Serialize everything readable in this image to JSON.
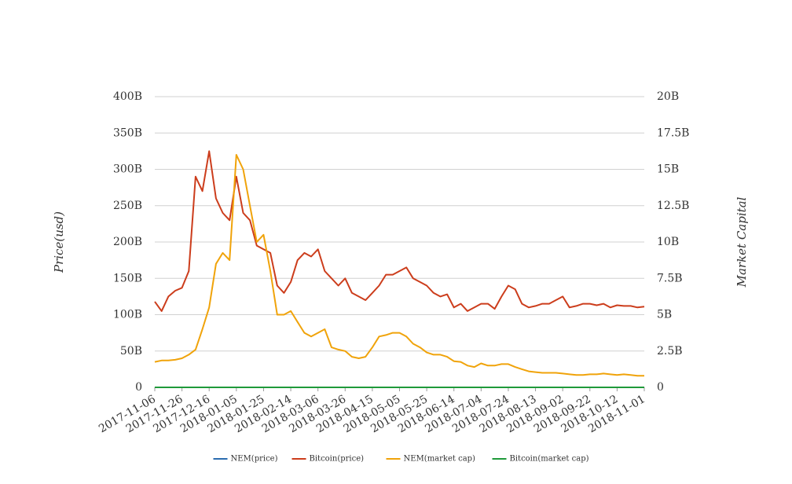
{
  "chart_data": {
    "type": "line",
    "y_label": "Price(usd)",
    "y2_label": "Market Capital",
    "x": [
      "2017-11-06",
      "2017-11-11",
      "2017-11-16",
      "2017-11-21",
      "2017-11-26",
      "2017-12-01",
      "2017-12-06",
      "2017-12-11",
      "2017-12-16",
      "2017-12-21",
      "2017-12-26",
      "2017-12-31",
      "2018-01-05",
      "2018-01-10",
      "2018-01-15",
      "2018-01-20",
      "2018-01-25",
      "2018-01-30",
      "2018-02-04",
      "2018-02-09",
      "2018-02-14",
      "2018-02-19",
      "2018-02-24",
      "2018-03-01",
      "2018-03-06",
      "2018-03-11",
      "2018-03-16",
      "2018-03-21",
      "2018-03-26",
      "2018-03-31",
      "2018-04-05",
      "2018-04-10",
      "2018-04-15",
      "2018-04-20",
      "2018-04-25",
      "2018-04-30",
      "2018-05-05",
      "2018-05-10",
      "2018-05-15",
      "2018-05-20",
      "2018-05-25",
      "2018-05-30",
      "2018-06-04",
      "2018-06-09",
      "2018-06-14",
      "2018-06-19",
      "2018-06-24",
      "2018-06-29",
      "2018-07-04",
      "2018-07-09",
      "2018-07-14",
      "2018-07-19",
      "2018-07-24",
      "2018-07-29",
      "2018-08-03",
      "2018-08-08",
      "2018-08-13",
      "2018-08-18",
      "2018-08-23",
      "2018-08-28",
      "2018-09-02",
      "2018-09-07",
      "2018-09-12",
      "2018-09-17",
      "2018-09-22",
      "2018-09-27",
      "2018-10-02",
      "2018-10-07",
      "2018-10-12",
      "2018-10-17",
      "2018-10-22",
      "2018-10-27",
      "2018-11-01"
    ],
    "xlim": [
      "2017-11-06",
      "2018-11-01"
    ],
    "xticks": [
      "2017-11-06",
      "2017-11-26",
      "2017-12-16",
      "2018-01-05",
      "2018-01-25",
      "2018-02-14",
      "2018-03-06",
      "2018-03-26",
      "2018-04-15",
      "2018-05-05",
      "2018-05-25",
      "2018-06-14",
      "2018-07-04",
      "2018-07-24",
      "2018-08-13",
      "2018-09-02",
      "2018-09-22",
      "2018-10-12",
      "2018-11-01"
    ],
    "ylim": [
      0,
      400000000000
    ],
    "yticks": [
      0,
      {
        "value": 50000000000,
        "label": "50B"
      },
      {
        "value": 100000000000,
        "label": "100B"
      },
      {
        "value": 150000000000,
        "label": "150B"
      },
      {
        "value": 200000000000,
        "label": "200B"
      },
      {
        "value": 250000000000,
        "label": "250B"
      },
      {
        "value": 300000000000,
        "label": "300B"
      },
      {
        "value": 350000000000,
        "label": "350B"
      },
      {
        "value": 400000000000,
        "label": "400B"
      }
    ],
    "y2lim": [
      0,
      20000000000
    ],
    "y2ticks": [
      0,
      {
        "value": 2500000000,
        "label": "2.5B"
      },
      {
        "value": 5000000000,
        "label": "5B"
      },
      {
        "value": 7500000000,
        "label": "7.5B"
      },
      {
        "value": 10000000000,
        "label": "10B"
      },
      {
        "value": 12500000000,
        "label": "12.5B"
      },
      {
        "value": 15000000000,
        "label": "15B"
      },
      {
        "value": 17500000000,
        "label": "17.5B"
      },
      {
        "value": 20000000000,
        "label": "20B"
      }
    ],
    "grid": true,
    "legend": "bottom",
    "series": [
      {
        "name": "NEM(price)",
        "color": "#2b6cb0",
        "values": [
          0,
          0,
          0,
          0,
          0,
          0,
          0,
          0,
          0,
          0,
          0,
          0,
          0,
          0,
          0,
          0,
          0,
          0,
          0,
          0,
          0,
          0,
          0,
          0,
          0,
          0,
          0,
          0,
          0,
          0,
          0,
          0,
          0,
          0,
          0,
          0,
          0,
          0,
          0,
          0,
          0,
          0,
          0,
          0,
          0,
          0,
          0,
          0,
          0,
          0,
          0,
          0,
          0,
          0,
          0,
          0,
          0,
          0,
          0,
          0,
          0,
          0,
          0,
          0,
          0,
          0,
          0,
          0,
          0,
          0,
          0,
          0,
          0
        ]
      },
      {
        "name": "Bitcoin(price)",
        "color": "#cc3d1c",
        "values": [
          118000000000,
          105000000000,
          125000000000,
          133000000000,
          137000000000,
          160000000000,
          290000000000,
          270000000000,
          325000000000,
          260000000000,
          240000000000,
          230000000000,
          290000000000,
          240000000000,
          230000000000,
          195000000000,
          190000000000,
          185000000000,
          140000000000,
          130000000000,
          145000000000,
          175000000000,
          185000000000,
          180000000000,
          190000000000,
          160000000000,
          150000000000,
          140000000000,
          150000000000,
          130000000000,
          125000000000,
          120000000000,
          130000000000,
          140000000000,
          155000000000,
          155000000000,
          160000000000,
          165000000000,
          150000000000,
          145000000000,
          140000000000,
          130000000000,
          125000000000,
          128000000000,
          110000000000,
          115000000000,
          105000000000,
          110000000000,
          115000000000,
          115000000000,
          108000000000,
          125000000000,
          140000000000,
          135000000000,
          115000000000,
          110000000000,
          112000000000,
          115000000000,
          115000000000,
          120000000000,
          125000000000,
          110000000000,
          112000000000,
          115000000000,
          115000000000,
          113000000000,
          115000000000,
          110000000000,
          113000000000,
          112000000000,
          112000000000,
          110000000000,
          111000000000
        ]
      },
      {
        "name": "NEM(market cap)",
        "color": "#f0a30a",
        "axis": "y2",
        "values": [
          1750000000,
          1850000000,
          1850000000,
          1900000000,
          2000000000,
          2250000000,
          2600000000,
          4000000000,
          5500000000,
          8500000000,
          9250000000,
          8750000000,
          16000000000,
          15000000000,
          12500000000,
          10000000000,
          10500000000,
          8000000000,
          5000000000,
          5000000000,
          5250000000,
          4500000000,
          3750000000,
          3500000000,
          3750000000,
          4000000000,
          2750000000,
          2600000000,
          2500000000,
          2100000000,
          2000000000,
          2100000000,
          2750000000,
          3500000000,
          3600000000,
          3750000000,
          3750000000,
          3500000000,
          3000000000,
          2750000000,
          2400000000,
          2250000000,
          2250000000,
          2100000000,
          1800000000,
          1750000000,
          1500000000,
          1400000000,
          1650000000,
          1500000000,
          1500000000,
          1600000000,
          1600000000,
          1400000000,
          1250000000,
          1100000000,
          1050000000,
          1000000000,
          1000000000,
          1000000000,
          950000000,
          900000000,
          850000000,
          850000000,
          900000000,
          900000000,
          950000000,
          900000000,
          850000000,
          900000000,
          850000000,
          800000000,
          800000000
        ]
      },
      {
        "name": "Bitcoin(market cap)",
        "color": "#1f9a3a",
        "axis": "y2",
        "values": [
          0,
          0,
          0,
          0,
          0,
          0,
          0,
          0,
          0,
          0,
          0,
          0,
          0,
          0,
          0,
          0,
          0,
          0,
          0,
          0,
          0,
          0,
          0,
          0,
          0,
          0,
          0,
          0,
          0,
          0,
          0,
          0,
          0,
          0,
          0,
          0,
          0,
          0,
          0,
          0,
          0,
          0,
          0,
          0,
          0,
          0,
          0,
          0,
          0,
          0,
          0,
          0,
          0,
          0,
          0,
          0,
          0,
          0,
          0,
          0,
          0,
          0,
          0,
          0,
          0,
          0,
          0,
          0,
          0,
          0,
          0,
          0,
          0
        ]
      }
    ]
  }
}
